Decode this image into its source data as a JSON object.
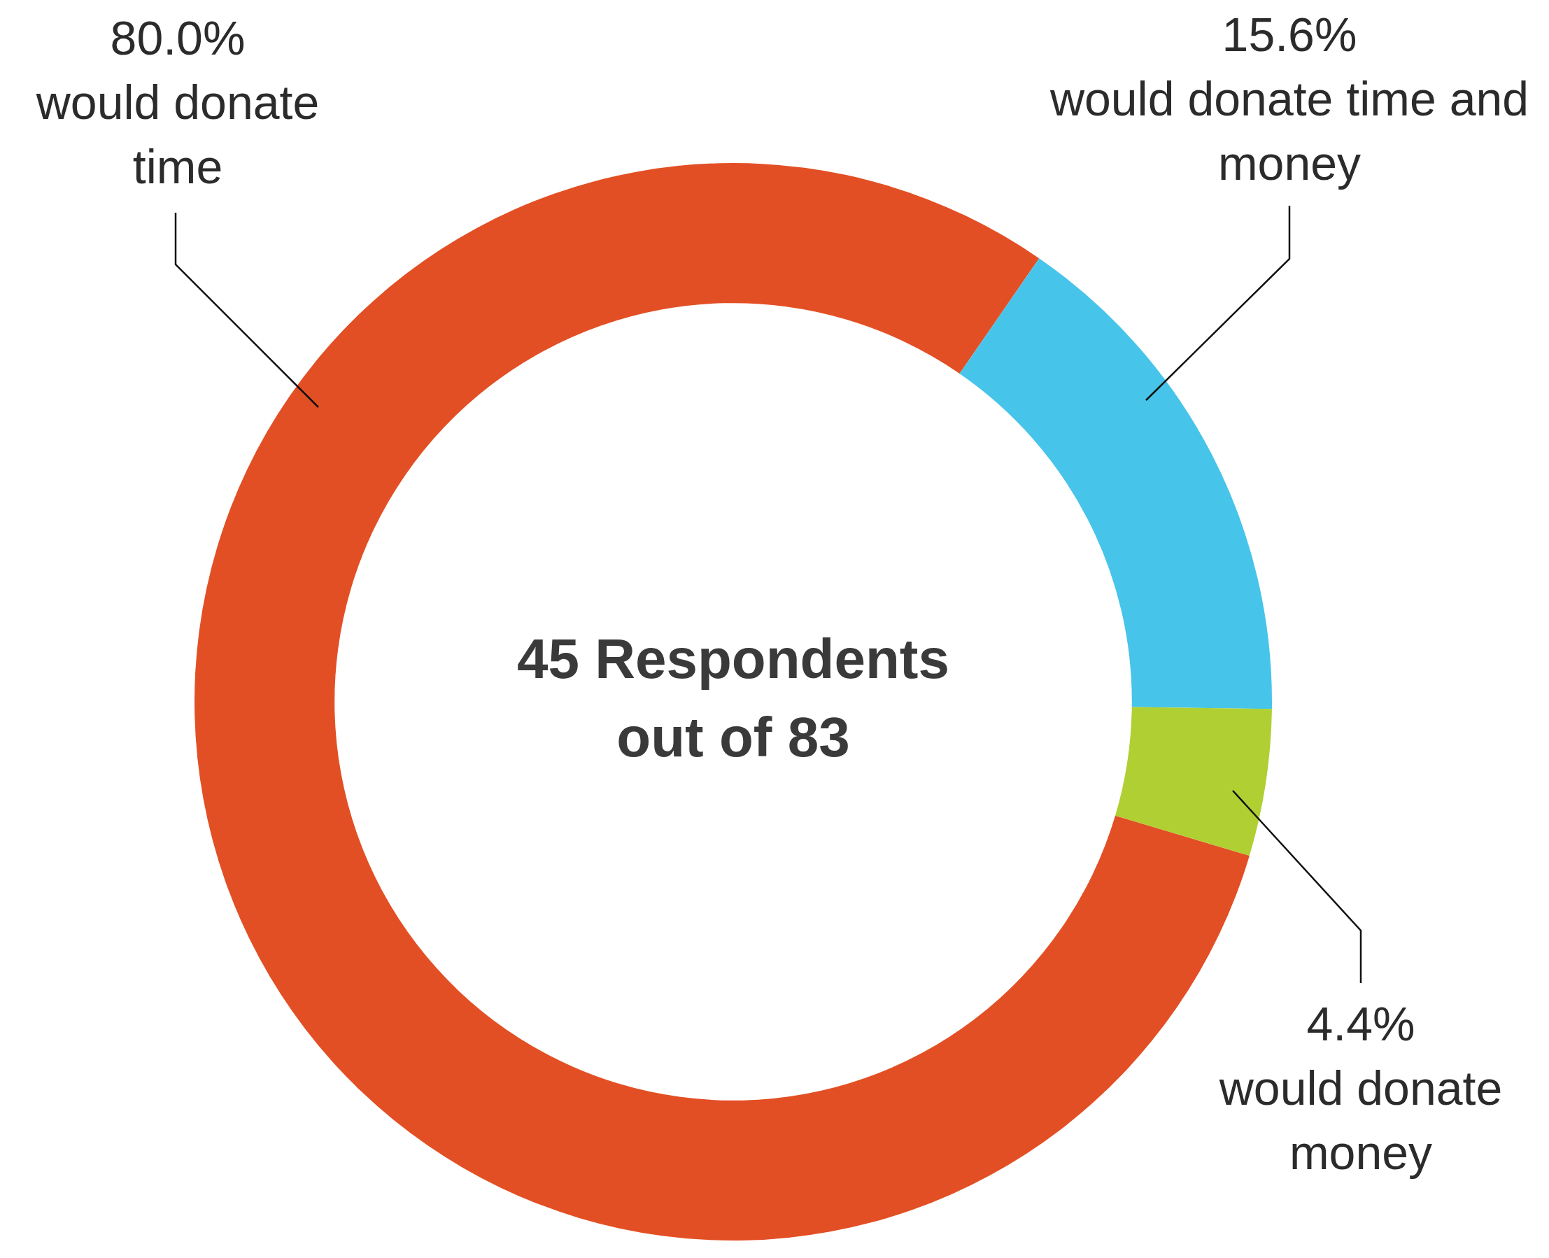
{
  "chart_data": {
    "type": "donut",
    "categories": [
      "would donate time",
      "would donate time and money",
      "would donate money"
    ],
    "values": [
      80.0,
      15.6,
      4.4
    ],
    "colors": [
      "#e34f24",
      "#47c4ea",
      "#b0cf32"
    ],
    "value_labels": [
      "80.0%",
      "15.6%",
      "4.4%"
    ],
    "annotations": [
      "45 Respondents out of 83"
    ],
    "legend": false
  }
}
